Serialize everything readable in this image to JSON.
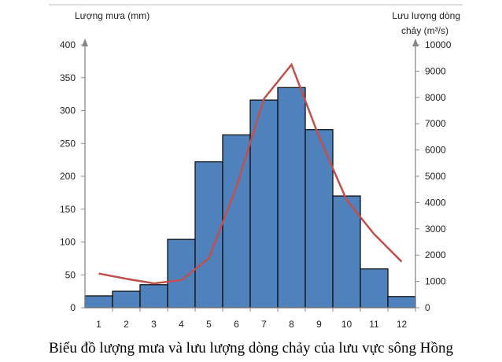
{
  "chart_data": {
    "type": "bar+line",
    "title": "Biểu đồ lượng mưa và lưu lượng dòng chảy của lưu vực sông Hồng",
    "categories": [
      "1",
      "2",
      "3",
      "4",
      "5",
      "6",
      "7",
      "8",
      "9",
      "10",
      "11",
      "12"
    ],
    "series": [
      {
        "name": "Lượng mưa (mm)",
        "type": "bar",
        "axis": "left",
        "color": "#4f81bd",
        "values": [
          18,
          25,
          35,
          104,
          222,
          263,
          316,
          335,
          271,
          170,
          59,
          17
        ]
      },
      {
        "name": "Lưu lượng dòng chảy (m³/s)",
        "type": "line",
        "axis": "right",
        "color": "#c0504d",
        "values": [
          1300,
          1100,
          925,
          1050,
          1880,
          4600,
          7950,
          9250,
          6500,
          4100,
          2800,
          1750
        ]
      }
    ],
    "ylabel_left": "Lượng mưa (mm)",
    "ylabel_right_line1": "Lưu lượng dòng",
    "ylabel_right_line2": "chảy (m³/s)",
    "ylim_left": [
      0,
      400
    ],
    "yticks_left": [
      0,
      50,
      100,
      150,
      200,
      250,
      300,
      350,
      400
    ],
    "ylim_right": [
      0,
      10000
    ],
    "yticks_right": [
      0,
      1000,
      2000,
      3000,
      4000,
      5000,
      6000,
      7000,
      8000,
      9000,
      10000
    ],
    "grid": false
  }
}
